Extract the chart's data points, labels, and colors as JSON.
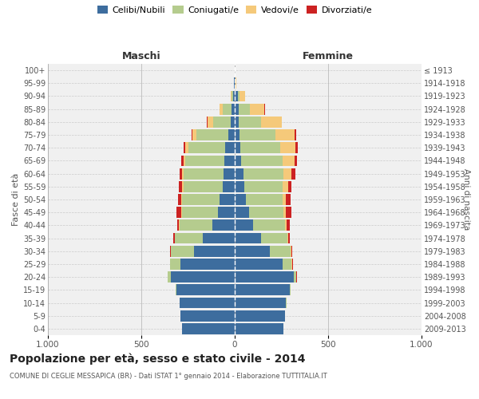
{
  "age_groups": [
    "0-4",
    "5-9",
    "10-14",
    "15-19",
    "20-24",
    "25-29",
    "30-34",
    "35-39",
    "40-44",
    "45-49",
    "50-54",
    "55-59",
    "60-64",
    "65-69",
    "70-74",
    "75-79",
    "80-84",
    "85-89",
    "90-94",
    "95-99",
    "100+"
  ],
  "birth_years": [
    "2009-2013",
    "2004-2008",
    "1999-2003",
    "1994-1998",
    "1989-1993",
    "1984-1988",
    "1979-1983",
    "1974-1978",
    "1969-1973",
    "1964-1968",
    "1959-1963",
    "1954-1958",
    "1949-1953",
    "1944-1948",
    "1939-1943",
    "1934-1938",
    "1929-1933",
    "1924-1928",
    "1919-1923",
    "1914-1918",
    "≤ 1913"
  ],
  "males": {
    "celibe": [
      280,
      290,
      295,
      310,
      340,
      290,
      220,
      170,
      120,
      90,
      80,
      65,
      60,
      55,
      50,
      35,
      20,
      15,
      10,
      3,
      2
    ],
    "coniugato": [
      0,
      0,
      2,
      5,
      20,
      55,
      120,
      150,
      175,
      190,
      200,
      210,
      215,
      210,
      200,
      170,
      95,
      50,
      8,
      2,
      0
    ],
    "vedovo": [
      0,
      0,
      0,
      0,
      0,
      0,
      1,
      2,
      3,
      5,
      5,
      5,
      5,
      10,
      15,
      20,
      30,
      15,
      5,
      0,
      0
    ],
    "divorziato": [
      0,
      0,
      0,
      0,
      1,
      2,
      5,
      8,
      10,
      25,
      20,
      20,
      15,
      10,
      10,
      5,
      3,
      2,
      0,
      0,
      0
    ]
  },
  "females": {
    "nubile": [
      260,
      270,
      275,
      295,
      315,
      255,
      190,
      140,
      100,
      75,
      60,
      50,
      45,
      35,
      30,
      25,
      20,
      20,
      15,
      3,
      2
    ],
    "coniugata": [
      0,
      0,
      2,
      5,
      15,
      50,
      110,
      140,
      170,
      185,
      195,
      205,
      215,
      220,
      215,
      195,
      120,
      60,
      12,
      2,
      0
    ],
    "vedova": [
      0,
      0,
      0,
      0,
      1,
      2,
      3,
      5,
      8,
      15,
      20,
      30,
      45,
      65,
      80,
      100,
      110,
      80,
      30,
      5,
      0
    ],
    "divorziata": [
      0,
      0,
      0,
      0,
      1,
      3,
      5,
      10,
      15,
      30,
      25,
      20,
      20,
      12,
      12,
      8,
      3,
      2,
      0,
      0,
      0
    ]
  },
  "colors": {
    "celibe": "#3d6d9e",
    "coniugato": "#b5cc8e",
    "vedovo": "#f5c97a",
    "divorziato": "#cc2222"
  },
  "xlim": 1000,
  "title": "Popolazione per età, sesso e stato civile - 2014",
  "subtitle": "COMUNE DI CEGLIE MESSAPICA (BR) - Dati ISTAT 1° gennaio 2014 - Elaborazione TUTTITALIA.IT",
  "ylabel_left": "Fasce di età",
  "ylabel_right": "Anni di nascita",
  "xlabel_maschi": "Maschi",
  "xlabel_femmine": "Femmine",
  "bg_color": "#ffffff",
  "plot_bg": "#f0f0f0",
  "grid_color": "#cccccc",
  "bar_height": 0.85
}
